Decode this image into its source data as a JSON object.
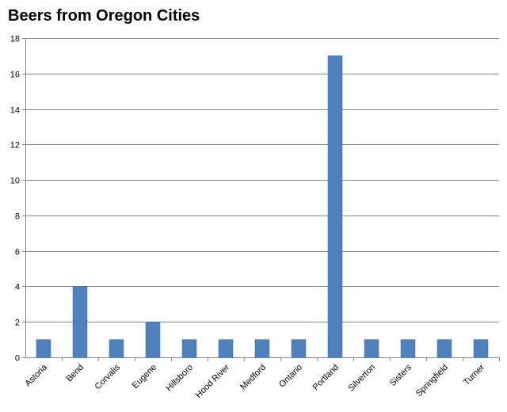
{
  "chart_data": {
    "type": "bar",
    "title": "Beers from Oregon Cities",
    "xlabel": "",
    "ylabel": "",
    "categories": [
      "Astoria",
      "Bend",
      "Corvalis",
      "Eugene",
      "Hillsboro",
      "Hood River",
      "Medford",
      "Ontario",
      "Portland",
      "Silverton",
      "Sisters",
      "Springfield",
      "Turner"
    ],
    "values": [
      1,
      4,
      1,
      2,
      1,
      1,
      1,
      1,
      17,
      1,
      1,
      1,
      1
    ],
    "ylim": [
      0,
      18
    ],
    "yticks": [
      0,
      2,
      4,
      6,
      8,
      10,
      12,
      14,
      16,
      18
    ],
    "grid": true,
    "legend": "none",
    "colors": {
      "bar": "#4f81bd",
      "bar_border": "#3a6aa0",
      "grid": "#878787",
      "axis": "#878787"
    }
  }
}
